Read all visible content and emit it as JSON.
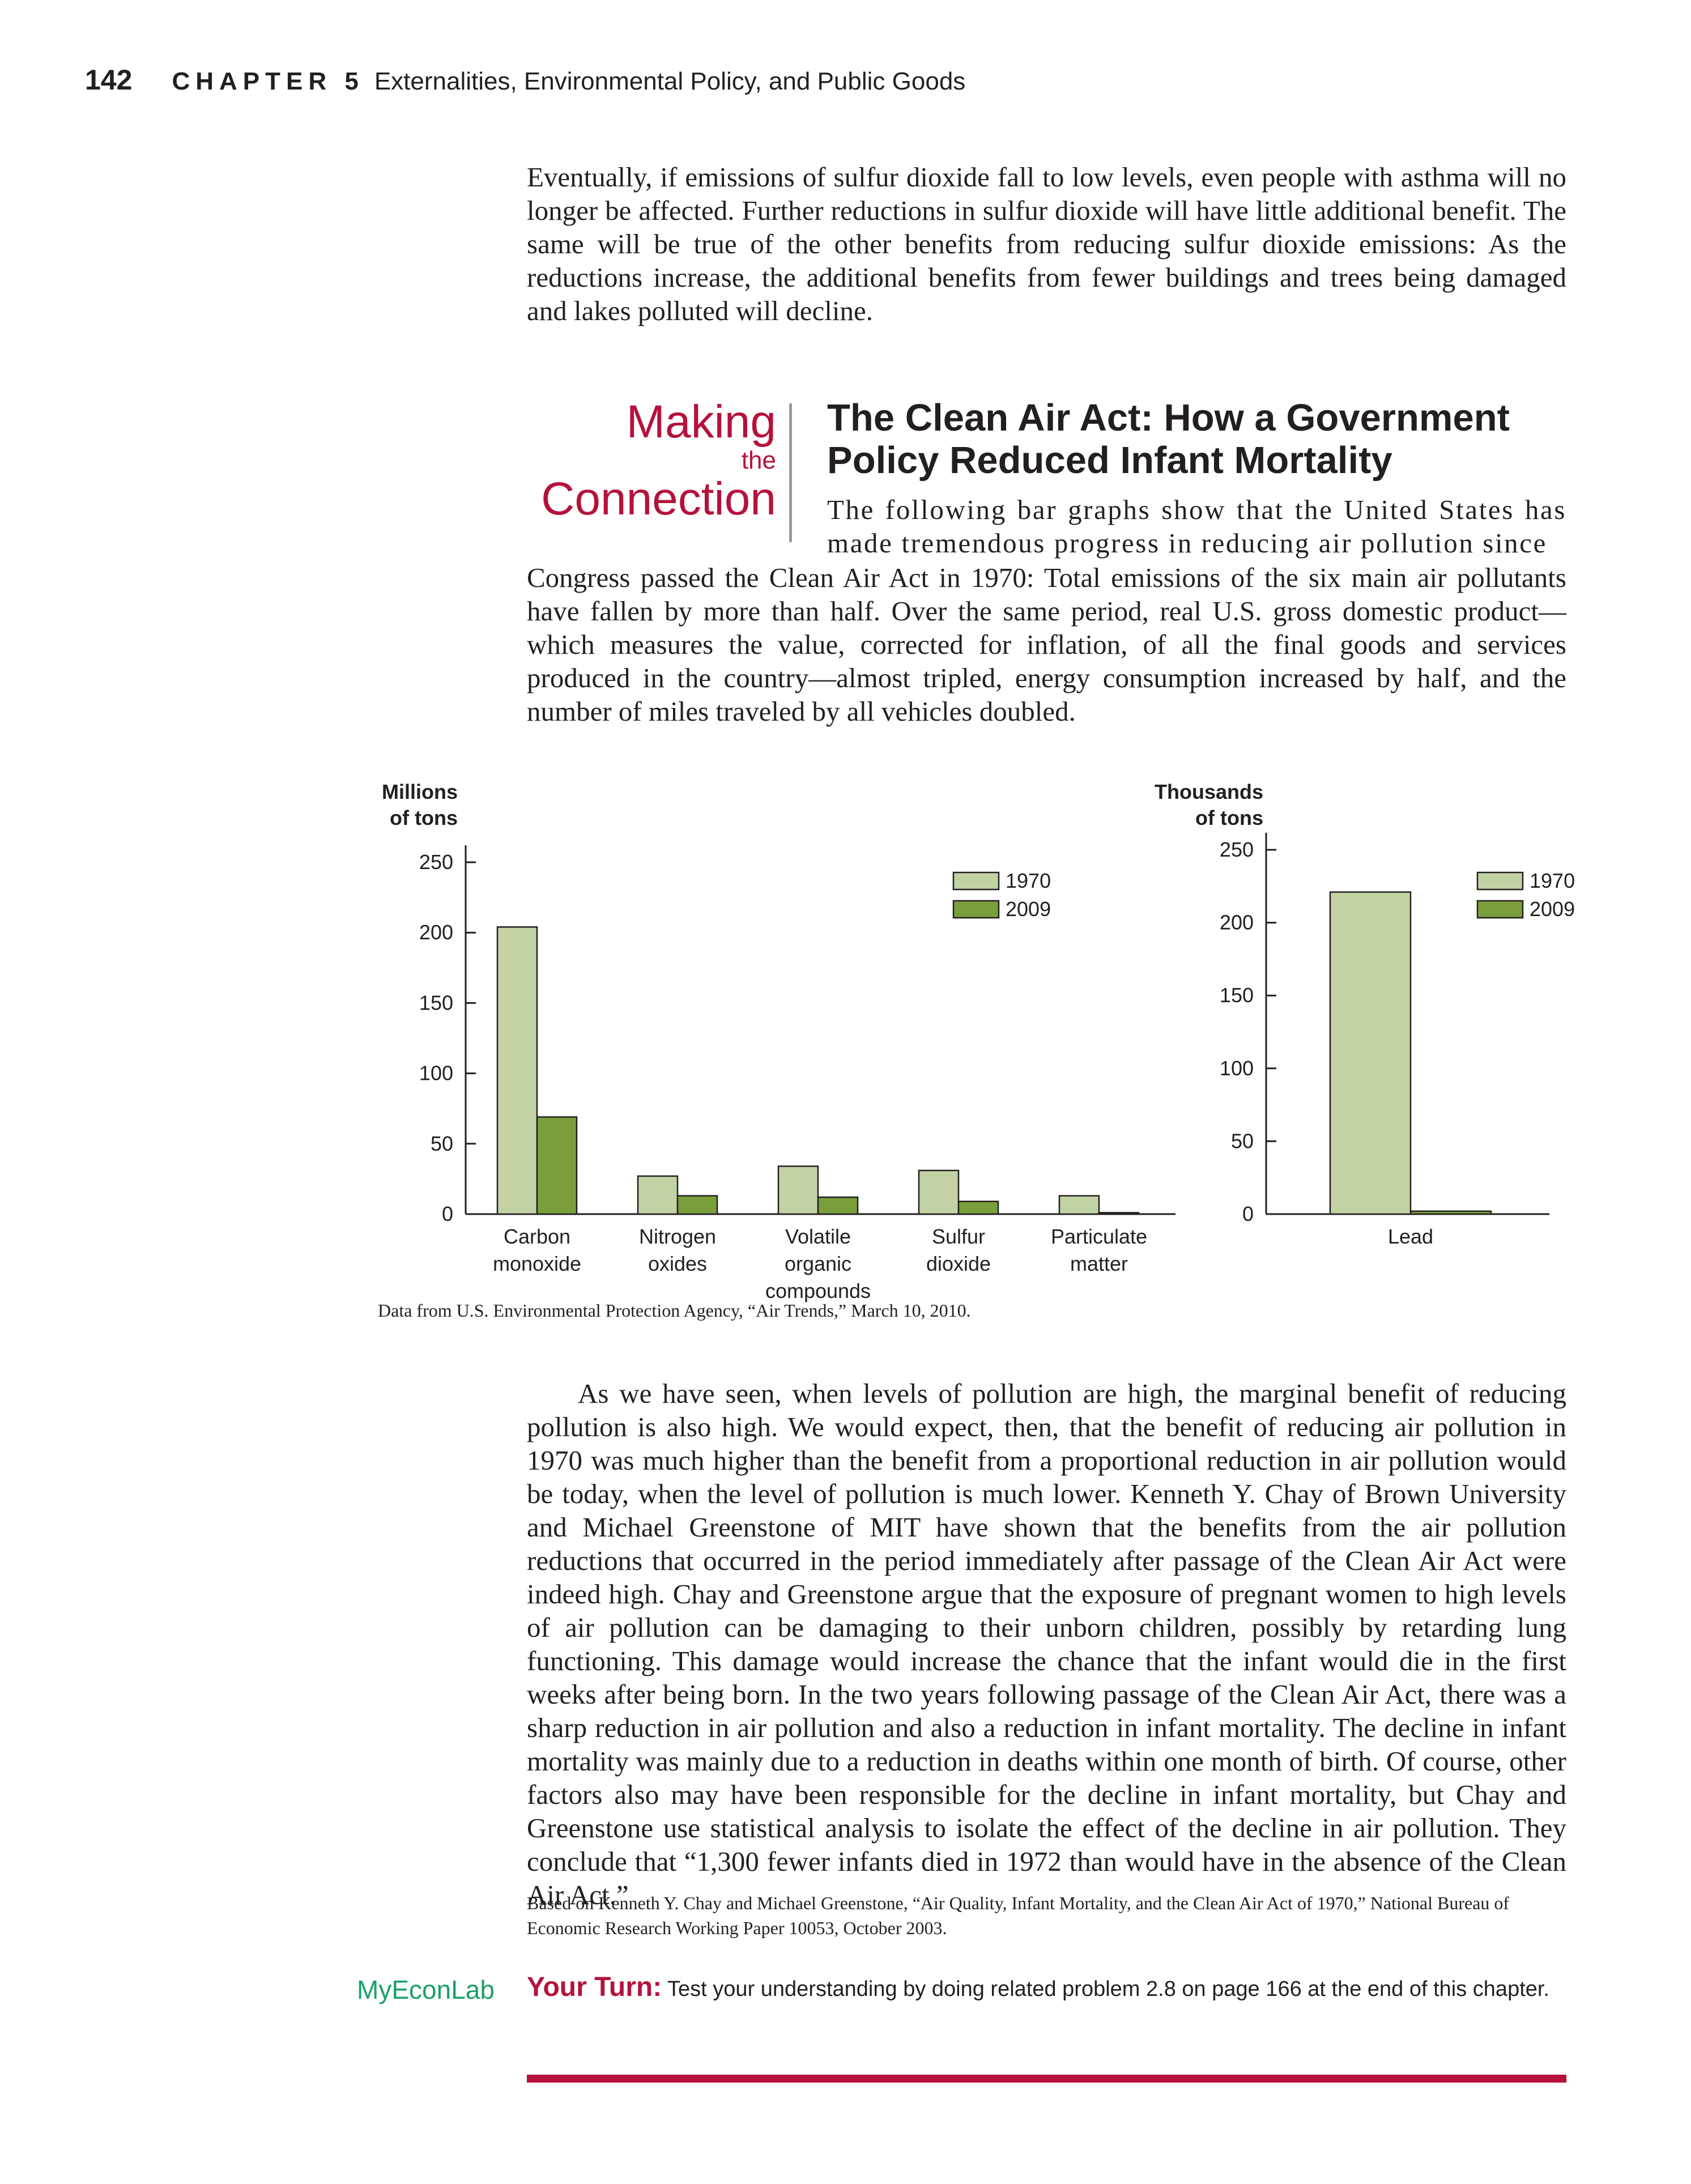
{
  "header": {
    "page_number": "142",
    "chapter_label": "CHAPTER 5",
    "chapter_title": "Externalities, Environmental Policy, and Public Goods"
  },
  "intro_paragraph": "Eventually, if emissions of sulfur dioxide fall to low levels, even people with asthma will no longer be affected. Further reductions in sulfur dioxide will have little additional benefit. The same will be true of the other benefits from reducing sulfur dioxide emissions: As the reductions increase, the additional benefits from fewer buildings and trees being damaged and lakes polluted will decline.",
  "feature": {
    "label_making": "Making",
    "label_the": "the",
    "label_connection": "Connection",
    "title": "The Clean Air Act: How a Government Policy Reduced Infant Mortality",
    "first_lines": "The following bar graphs show that the United States has made tremendous progress in reducing air pollution since",
    "continuation": "Congress passed the Clean Air Act in 1970: Total emissions of the six main air pollutants have fallen by more than half. Over the same period, real U.S. gross domestic product—which measures the value, corrected for inflation, of all the final goods and services produced in the country—almost tripled, energy consumption increased by half, and the number of miles traveled by all vehicles doubled."
  },
  "chart_data": [
    {
      "type": "bar",
      "ylabel": [
        "Millions",
        "of tons"
      ],
      "ylim": [
        0,
        250
      ],
      "yticks": [
        0,
        50,
        100,
        150,
        200,
        250
      ],
      "categories": [
        [
          "Carbon",
          "monoxide"
        ],
        [
          "Nitrogen",
          "oxides"
        ],
        [
          "Volatile",
          "organic",
          "compounds"
        ],
        [
          "Sulfur",
          "dioxide"
        ],
        [
          "Particulate",
          "matter"
        ]
      ],
      "series": [
        {
          "name": "1970",
          "color": "#c3d2a4",
          "values": [
            204,
            27,
            34,
            31,
            13
          ]
        },
        {
          "name": "2009",
          "color": "#7a9e3c",
          "values": [
            69,
            13,
            12,
            9,
            1
          ]
        }
      ],
      "legend": "top-right",
      "grid": false
    },
    {
      "type": "bar",
      "ylabel": [
        "Thousands",
        "of tons"
      ],
      "ylim": [
        0,
        250
      ],
      "yticks": [
        0,
        50,
        100,
        150,
        200,
        250
      ],
      "categories": [
        [
          "Lead"
        ]
      ],
      "series": [
        {
          "name": "1970",
          "color": "#c3d2a4",
          "values": [
            221
          ]
        },
        {
          "name": "2009",
          "color": "#7a9e3c",
          "values": [
            2
          ]
        }
      ],
      "legend": "top-right",
      "grid": false
    }
  ],
  "source_note": "Data from U.S. Environmental Protection Agency, “Air Trends,” March 10, 2010.",
  "body_paragraph": "As we have seen, when levels of pollution are high, the marginal benefit of reducing pollution is also high. We would expect, then, that the benefit of reducing air pollution in 1970 was much higher than the benefit from a proportional reduction in air pollution would be today, when the level of pollution is much lower. Kenneth Y. Chay of Brown University and Michael Greenstone of MIT have shown that the benefits from the air pollution reductions that occurred in the period immediately after passage of the Clean Air Act were indeed high. Chay and Greenstone argue that the exposure of pregnant women to high levels of air pollution can be damaging to their unborn children, possibly by retarding lung functioning. This damage would increase the chance that the infant would die in the first weeks after being born. In the two years following passage of the Clean Air Act, there was a sharp reduction in air pollution and also a reduction in infant mortality. The decline in infant mortality was mainly due to a reduction in deaths within one month of birth. Of course, other factors also may have been responsible for the decline in infant mortality, but Chay and Greenstone use statistical analysis to isolate the effect of the decline in air pollution. They conclude that “1,300 fewer infants died in 1972 than would have in the absence of the Clean Air Act.”",
  "footnote": "Based on Kenneth Y. Chay and Michael Greenstone, “Air Quality, Infant Mortality, and the Clean Air Act of 1970,” National Bureau of Economic Research Working Paper 10053, October 2003.",
  "myeconlab": {
    "my": "My",
    "econ": "Econ",
    "lab": "Lab"
  },
  "your_turn": {
    "label": "Your Turn:",
    "text": "Test your understanding by doing related problem 2.8 on page 166 at the end of this chapter."
  }
}
